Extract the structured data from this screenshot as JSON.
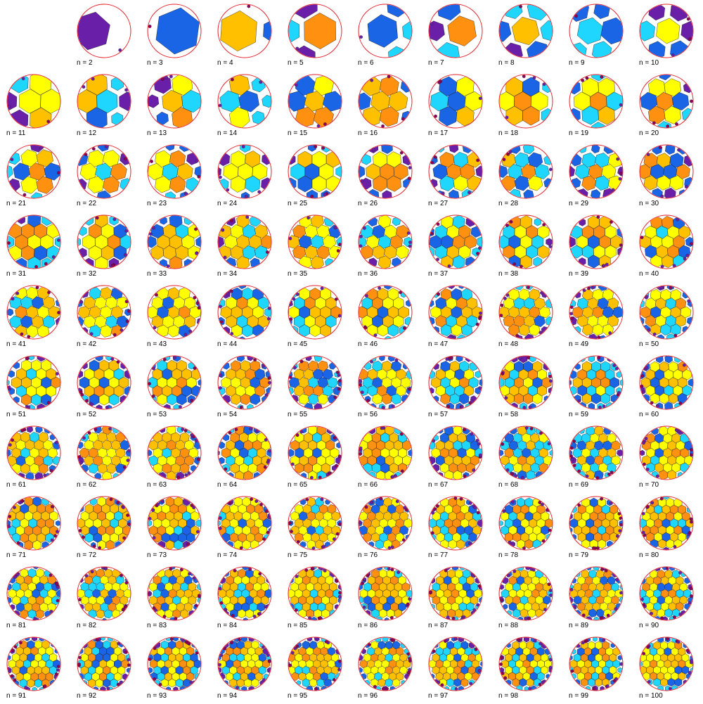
{
  "colors": {
    "ring": "#e8202a",
    "outline": "#1a1a1a",
    "palette": [
      "#ffff00",
      "#ffc000",
      "#ff9010",
      "#1fd6ff",
      "#1a64e6",
      "#6a1fa8",
      "#8a005a"
    ]
  },
  "diagrams": [
    {
      "label": "n = 2"
    },
    {
      "label": "n = 3"
    },
    {
      "label": "n = 4"
    },
    {
      "label": "n = 5"
    },
    {
      "label": "n = 6"
    },
    {
      "label": "n = 7"
    },
    {
      "label": "n = 8"
    },
    {
      "label": "n = 9"
    },
    {
      "label": "n = 10"
    },
    {
      "label": "n = 11"
    },
    {
      "label": "n = 12"
    },
    {
      "label": "n = 13"
    },
    {
      "label": "n = 14"
    },
    {
      "label": "n = 15"
    },
    {
      "label": "n = 16"
    },
    {
      "label": "n = 17"
    },
    {
      "label": "n = 18"
    },
    {
      "label": "n = 19"
    },
    {
      "label": "n = 20"
    },
    {
      "label": "n = 21"
    },
    {
      "label": "n = 22"
    },
    {
      "label": "n = 23"
    },
    {
      "label": "n = 24"
    },
    {
      "label": "n = 25"
    },
    {
      "label": "n = 26"
    },
    {
      "label": "n = 27"
    },
    {
      "label": "n = 28"
    },
    {
      "label": "n = 29"
    },
    {
      "label": "n = 30"
    },
    {
      "label": "n = 31"
    },
    {
      "label": "n = 32"
    },
    {
      "label": "n = 33"
    },
    {
      "label": "n = 34"
    },
    {
      "label": "n = 35"
    },
    {
      "label": "n = 36"
    },
    {
      "label": "n = 37"
    },
    {
      "label": "n = 38"
    },
    {
      "label": "n = 39"
    },
    {
      "label": "n = 40"
    },
    {
      "label": "n = 41"
    },
    {
      "label": "n = 42"
    },
    {
      "label": "n = 43"
    },
    {
      "label": "n = 44"
    },
    {
      "label": "n = 45"
    },
    {
      "label": "n = 46"
    },
    {
      "label": "n = 47"
    },
    {
      "label": "n = 48"
    },
    {
      "label": "n = 49"
    },
    {
      "label": "n = 50"
    },
    {
      "label": "n = 51"
    },
    {
      "label": "n = 52"
    },
    {
      "label": "n = 53"
    },
    {
      "label": "n = 54"
    },
    {
      "label": "n = 55"
    },
    {
      "label": "n = 56"
    },
    {
      "label": "n = 57"
    },
    {
      "label": "n = 58"
    },
    {
      "label": "n = 59"
    },
    {
      "label": "n = 60"
    },
    {
      "label": "n = 61"
    },
    {
      "label": "n = 62"
    },
    {
      "label": "n = 63"
    },
    {
      "label": "n = 64"
    },
    {
      "label": "n = 65"
    },
    {
      "label": "n = 66"
    },
    {
      "label": "n = 67"
    },
    {
      "label": "n = 68"
    },
    {
      "label": "n = 69"
    },
    {
      "label": "n = 70"
    },
    {
      "label": "n = 71"
    },
    {
      "label": "n = 72"
    },
    {
      "label": "n = 73"
    },
    {
      "label": "n = 74"
    },
    {
      "label": "n = 75"
    },
    {
      "label": "n = 76"
    },
    {
      "label": "n = 77"
    },
    {
      "label": "n = 78"
    },
    {
      "label": "n = 79"
    },
    {
      "label": "n = 80"
    },
    {
      "label": "n = 81"
    },
    {
      "label": "n = 82"
    },
    {
      "label": "n = 83"
    },
    {
      "label": "n = 84"
    },
    {
      "label": "n = 85"
    },
    {
      "label": "n = 86"
    },
    {
      "label": "n = 87"
    },
    {
      "label": "n = 88"
    },
    {
      "label": "n = 89"
    },
    {
      "label": "n = 90"
    },
    {
      "label": "n = 91"
    },
    {
      "label": "n = 92"
    },
    {
      "label": "n = 93"
    },
    {
      "label": "n = 94"
    },
    {
      "label": "n = 95"
    },
    {
      "label": "n = 96"
    },
    {
      "label": "n = 97"
    },
    {
      "label": "n = 98"
    },
    {
      "label": "n = 99"
    },
    {
      "label": "n = 100"
    }
  ]
}
